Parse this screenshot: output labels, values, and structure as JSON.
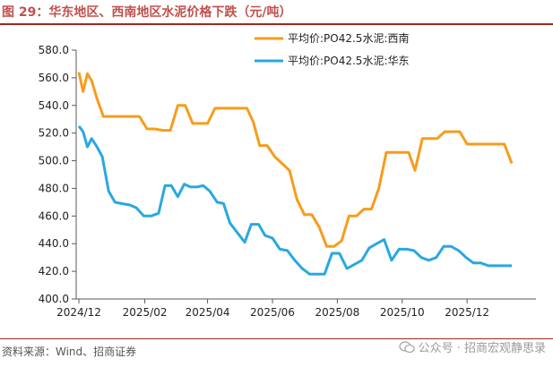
{
  "header": {
    "figure_title": "图 29：华东地区、西南地区水泥价格下跌（元/吨）"
  },
  "footer": {
    "source": "资料来源：Wind、招商证券",
    "watermark": "公众号 · 招商宏观静思录"
  },
  "colors": {
    "title": "#c0504d",
    "rule": "#a0281e",
    "southwest": "#f79c1c",
    "eastchina": "#29a8e0"
  },
  "chart_data": {
    "type": "line",
    "title": "",
    "xlabel": "",
    "ylabel": "",
    "ylim": [
      400,
      580
    ],
    "yticks": [
      "400.0",
      "420.0",
      "440.0",
      "460.0",
      "480.0",
      "500.0",
      "520.0",
      "540.0",
      "560.0",
      "580.0"
    ],
    "xticks": [
      "2024/12",
      "2025/02",
      "2025/04",
      "2025/06",
      "2025/08",
      "2025/10",
      "2025/12"
    ],
    "grid": false,
    "legend": "top-right",
    "series": [
      {
        "name": "平均价:PO42.5水泥:西南",
        "color": "#f79c1c",
        "points": [
          [
            "2024/12/01",
            564
          ],
          [
            "2024/12/05",
            550
          ],
          [
            "2024/12/09",
            563
          ],
          [
            "2024/12/13",
            558
          ],
          [
            "2024/12/18",
            545
          ],
          [
            "2024/12/24",
            532
          ],
          [
            "2025/01/01",
            532
          ],
          [
            "2025/01/10",
            532
          ],
          [
            "2025/01/20",
            532
          ],
          [
            "2025/01/27",
            532
          ],
          [
            "2025/02/03",
            523
          ],
          [
            "2025/02/10",
            523
          ],
          [
            "2025/02/18",
            522
          ],
          [
            "2025/02/25",
            522
          ],
          [
            "2025/03/04",
            540
          ],
          [
            "2025/03/11",
            540
          ],
          [
            "2025/03/18",
            527
          ],
          [
            "2025/03/25",
            527
          ],
          [
            "2025/04/01",
            527
          ],
          [
            "2025/04/08",
            538
          ],
          [
            "2025/04/16",
            538
          ],
          [
            "2025/04/24",
            538
          ],
          [
            "2025/05/01",
            538
          ],
          [
            "2025/05/08",
            538
          ],
          [
            "2025/05/14",
            528
          ],
          [
            "2025/05/20",
            511
          ],
          [
            "2025/05/27",
            511
          ],
          [
            "2025/06/03",
            503
          ],
          [
            "2025/06/10",
            498
          ],
          [
            "2025/06/17",
            493
          ],
          [
            "2025/06/24",
            472
          ],
          [
            "2025/07/01",
            461
          ],
          [
            "2025/07/08",
            461
          ],
          [
            "2025/07/15",
            452
          ],
          [
            "2025/07/22",
            438
          ],
          [
            "2025/07/29",
            438
          ],
          [
            "2025/08/05",
            442
          ],
          [
            "2025/08/12",
            460
          ],
          [
            "2025/08/19",
            460
          ],
          [
            "2025/08/26",
            465
          ],
          [
            "2025/09/02",
            465
          ],
          [
            "2025/09/09",
            480
          ],
          [
            "2025/09/16",
            506
          ],
          [
            "2025/09/23",
            506
          ],
          [
            "2025/09/30",
            506
          ],
          [
            "2025/10/07",
            506
          ],
          [
            "2025/10/13",
            493
          ],
          [
            "2025/10/20",
            516
          ],
          [
            "2025/10/27",
            516
          ],
          [
            "2025/11/03",
            516
          ],
          [
            "2025/11/10",
            521
          ],
          [
            "2025/11/17",
            521
          ],
          [
            "2025/11/24",
            521
          ],
          [
            "2025/12/01",
            512
          ],
          [
            "2025/12/08",
            512
          ],
          [
            "2025/12/15",
            512
          ],
          [
            "2025/12/22",
            512
          ],
          [
            "2025/12/29",
            512
          ],
          [
            "2026/01/05",
            512
          ],
          [
            "2026/01/12",
            498
          ]
        ]
      },
      {
        "name": "平均价:PO42.5水泥:华东",
        "color": "#29a8e0",
        "points": [
          [
            "2024/12/01",
            525
          ],
          [
            "2024/12/05",
            521
          ],
          [
            "2024/12/09",
            510
          ],
          [
            "2024/12/13",
            516
          ],
          [
            "2024/12/18",
            510
          ],
          [
            "2024/12/23",
            503
          ],
          [
            "2024/12/29",
            478
          ],
          [
            "2025/01/04",
            470
          ],
          [
            "2025/01/10",
            469
          ],
          [
            "2025/01/18",
            468
          ],
          [
            "2025/01/24",
            466
          ],
          [
            "2025/01/31",
            460
          ],
          [
            "2025/02/07",
            460
          ],
          [
            "2025/02/14",
            462
          ],
          [
            "2025/02/20",
            482
          ],
          [
            "2025/02/26",
            482
          ],
          [
            "2025/03/04",
            474
          ],
          [
            "2025/03/10",
            483
          ],
          [
            "2025/03/16",
            481
          ],
          [
            "2025/03/22",
            481
          ],
          [
            "2025/03/28",
            482
          ],
          [
            "2025/04/03",
            478
          ],
          [
            "2025/04/10",
            470
          ],
          [
            "2025/04/16",
            469
          ],
          [
            "2025/04/22",
            455
          ],
          [
            "2025/04/29",
            448
          ],
          [
            "2025/05/06",
            441
          ],
          [
            "2025/05/12",
            454
          ],
          [
            "2025/05/19",
            454
          ],
          [
            "2025/05/25",
            446
          ],
          [
            "2025/06/01",
            444
          ],
          [
            "2025/06/08",
            436
          ],
          [
            "2025/06/15",
            435
          ],
          [
            "2025/06/22",
            428
          ],
          [
            "2025/06/29",
            422
          ],
          [
            "2025/07/06",
            418
          ],
          [
            "2025/07/13",
            418
          ],
          [
            "2025/07/20",
            418
          ],
          [
            "2025/07/27",
            433
          ],
          [
            "2025/08/03",
            433
          ],
          [
            "2025/08/10",
            422
          ],
          [
            "2025/08/17",
            425
          ],
          [
            "2025/08/24",
            428
          ],
          [
            "2025/08/31",
            437
          ],
          [
            "2025/09/07",
            440
          ],
          [
            "2025/09/14",
            443
          ],
          [
            "2025/09/21",
            428
          ],
          [
            "2025/09/28",
            436
          ],
          [
            "2025/10/05",
            436
          ],
          [
            "2025/10/12",
            435
          ],
          [
            "2025/10/19",
            430
          ],
          [
            "2025/10/26",
            428
          ],
          [
            "2025/11/02",
            430
          ],
          [
            "2025/11/09",
            438
          ],
          [
            "2025/11/16",
            438
          ],
          [
            "2025/11/23",
            435
          ],
          [
            "2025/11/30",
            430
          ],
          [
            "2025/12/07",
            426
          ],
          [
            "2025/12/14",
            426
          ],
          [
            "2025/12/21",
            424
          ],
          [
            "2026/01/12",
            424
          ]
        ]
      }
    ]
  }
}
